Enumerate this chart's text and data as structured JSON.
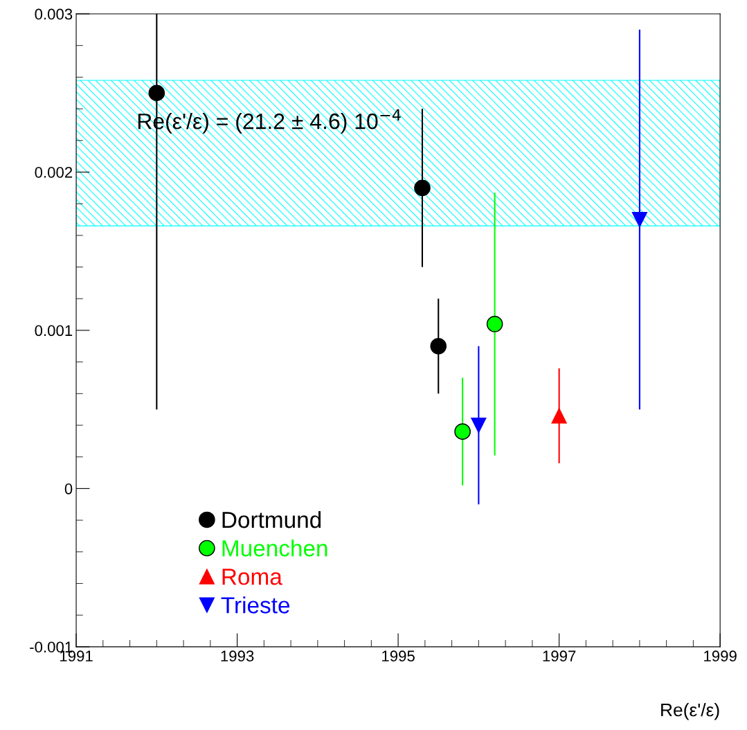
{
  "chart_data": {
    "type": "scatter",
    "xlabel": "Re(ε'/ε)",
    "xlim": [
      1991,
      1999
    ],
    "xticks": [
      1991,
      1993,
      1995,
      1997,
      1999
    ],
    "ylim": [
      -0.001,
      0.003
    ],
    "yticks": [
      -0.001,
      0,
      0.001,
      0.002,
      0.003
    ],
    "legend": "bottom left",
    "grid": false,
    "series": [
      {
        "name": "Dortmund",
        "color": "#000000",
        "marker": "circle",
        "x": [
          1992.0,
          1995.3,
          1995.5
        ],
        "values": [
          0.0025,
          0.0019,
          0.0009
        ],
        "errors": [
          [
            0.0005,
            0.003
          ],
          0.0005,
          0.0003
        ]
      },
      {
        "name": "Muenchen",
        "color": "#00ff00",
        "marker": "circle",
        "x": [
          1995.8,
          1996.2
        ],
        "values": [
          0.00036,
          0.00104
        ],
        "errors": [
          0.00034,
          0.00083
        ]
      },
      {
        "name": "Roma",
        "color": "#ff0000",
        "marker": "triangle",
        "x": [
          1997.0
        ],
        "values": [
          0.00046
        ],
        "errors": [
          0.0003
        ]
      },
      {
        "name": "Trieste",
        "color": "#0000ff",
        "marker": "triangle_down",
        "x": [
          1996.0,
          1998.0
        ],
        "values": [
          0.0004,
          0.0017
        ],
        "errors": [
          0.0005,
          0.0012
        ]
      }
    ],
    "bands": [
      {
        "axis": "y",
        "from": 0.00166,
        "to": 0.00258,
        "color": "#00ffff",
        "label": "Re(ε'/ε) = (21.2 ± 4.6) 10$^{−4}$"
      }
    ]
  }
}
